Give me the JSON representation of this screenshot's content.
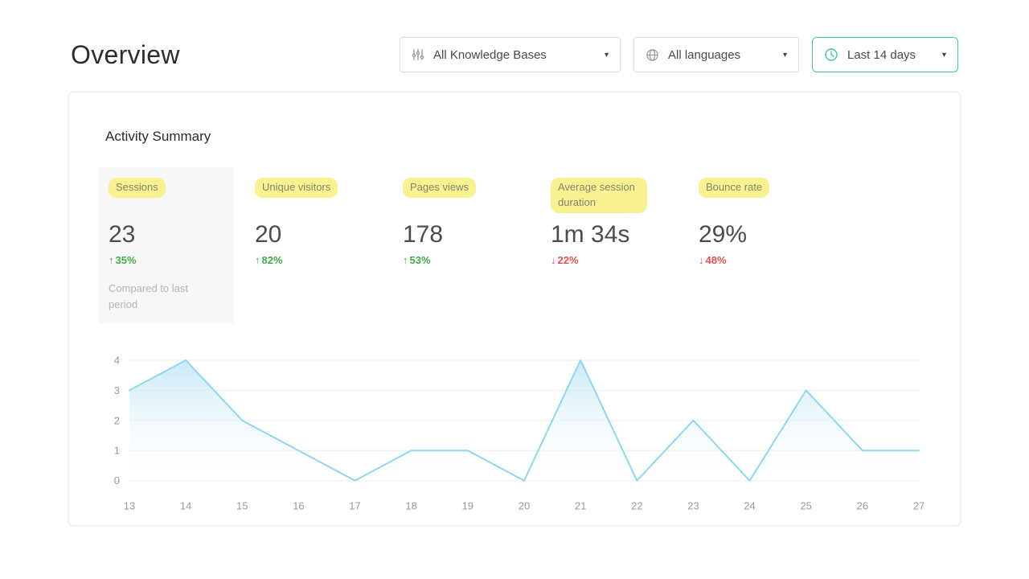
{
  "page": {
    "title": "Overview"
  },
  "icons": {
    "caret": "▾"
  },
  "filters": {
    "knowledge_bases": {
      "value": "All Knowledge Bases"
    },
    "languages": {
      "value": "All languages"
    },
    "date_range": {
      "value": "Last 14 days"
    }
  },
  "activity": {
    "title": "Activity Summary",
    "metrics": [
      {
        "label": "Sessions",
        "value": "23",
        "arrow": "↑",
        "change": "35%",
        "direction": "up",
        "note": "Compared to last period",
        "selected": true
      },
      {
        "label": "Unique visitors",
        "value": "20",
        "arrow": "↑",
        "change": "82%",
        "direction": "up"
      },
      {
        "label": "Pages views",
        "value": "178",
        "arrow": "↑",
        "change": "53%",
        "direction": "up"
      },
      {
        "label": "Average session duration",
        "value": "1m 34s",
        "arrow": "↓",
        "change": "22%",
        "direction": "down"
      },
      {
        "label": "Bounce rate",
        "value": "29%",
        "arrow": "↓",
        "change": "48%",
        "direction": "down"
      }
    ]
  },
  "chart_data": {
    "type": "area",
    "title": "",
    "x": [
      13,
      14,
      15,
      16,
      17,
      18,
      19,
      20,
      21,
      22,
      23,
      24,
      25,
      26,
      27
    ],
    "values": [
      3,
      4,
      2,
      1,
      0,
      1,
      1,
      0,
      4,
      0,
      2,
      0,
      3,
      1,
      1
    ],
    "xlabel": "",
    "ylabel": "",
    "ylim": [
      0,
      4
    ],
    "yticks": [
      0,
      1,
      2,
      3,
      4
    ],
    "grid": true,
    "legend": false,
    "line_color": "#8dd7f0",
    "fill_top": "#c6e9f6",
    "fill_bottom": "#ffffff"
  },
  "colors": {
    "up": "#3fae49",
    "down": "#e8504d",
    "highlight": "#f8f290",
    "date_accent": "#41c5a4"
  }
}
